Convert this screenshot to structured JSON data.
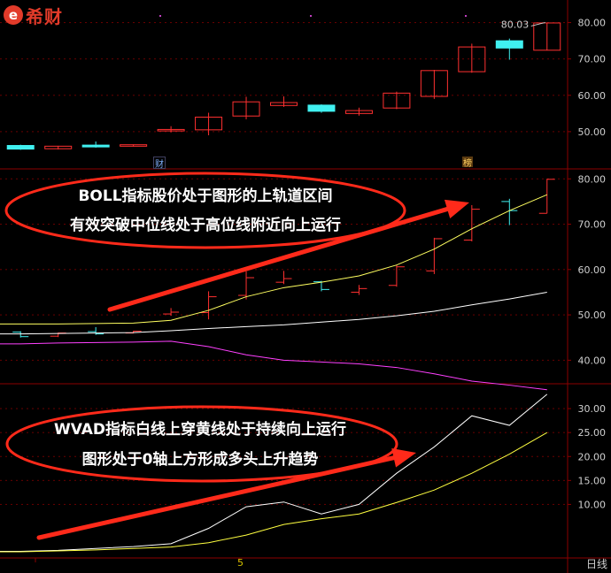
{
  "app": {
    "logo_text": "希财",
    "logo_mark": "e",
    "period_label": "日线",
    "date_tick": "5",
    "markers": [
      "财",
      "榜"
    ]
  },
  "colors": {
    "background": "#000000",
    "frame": "#8b0000",
    "axis_text": "#d0d0d0",
    "up_candle": "#ff3030",
    "down_candle": "#40f0f0",
    "boll_upper": "#ffff60",
    "boll_mid": "#ffffff",
    "boll_lower": "#ff40ff",
    "wvad_white": "#ffffff",
    "wvad_yellow": "#ffff40",
    "annotation": "#ff2a1a"
  },
  "annotations": {
    "boll_line1": "BOLL指标股价处于图形的上轨道区间",
    "boll_line2": "有效突破中位线处于高位线附近向上运行",
    "wvad_line1": "WVAD指标白线上穿黄线处于持续向上运行",
    "wvad_line2": "图形处于0轴上方形成多头上升趋势"
  },
  "chart_data": [
    {
      "type": "candlestick",
      "panel": "price",
      "title": "",
      "high_label": "80.03",
      "ylim": [
        40,
        85
      ],
      "yticks": [
        "50.00",
        "60.00",
        "70.00",
        "80.00"
      ],
      "candles": [
        {
          "o": 46.2,
          "c": 45.2,
          "h": 46.4,
          "l": 45.0
        },
        {
          "o": 45.3,
          "c": 46.0,
          "h": 46.1,
          "l": 45.1
        },
        {
          "o": 46.3,
          "c": 45.8,
          "h": 47.3,
          "l": 45.6
        },
        {
          "o": 46.0,
          "c": 46.4,
          "h": 46.5,
          "l": 45.9
        },
        {
          "o": 50.2,
          "c": 50.6,
          "h": 51.5,
          "l": 49.8
        },
        {
          "o": 50.5,
          "c": 54.0,
          "h": 55.2,
          "l": 49.0
        },
        {
          "o": 54.3,
          "c": 58.2,
          "h": 59.6,
          "l": 53.4
        },
        {
          "o": 57.2,
          "c": 58.0,
          "h": 59.7,
          "l": 56.8
        },
        {
          "o": 57.3,
          "c": 55.6,
          "h": 57.5,
          "l": 55.2
        },
        {
          "o": 55.0,
          "c": 55.8,
          "h": 56.6,
          "l": 54.4
        },
        {
          "o": 56.5,
          "c": 60.6,
          "h": 61.0,
          "l": 56.2
        },
        {
          "o": 59.7,
          "c": 66.8,
          "h": 67.0,
          "l": 59.0
        },
        {
          "o": 66.5,
          "c": 73.3,
          "h": 74.2,
          "l": 66.2
        },
        {
          "o": 75.0,
          "c": 73.0,
          "h": 75.6,
          "l": 69.8
        },
        {
          "o": 72.4,
          "c": 79.9,
          "h": 80.03,
          "l": 72.4
        }
      ]
    },
    {
      "type": "line",
      "panel": "BOLL",
      "title": "",
      "ylim": [
        35,
        82
      ],
      "yticks": [
        "40.00",
        "50.00",
        "60.00",
        "70.00",
        "80.00"
      ],
      "x": [
        0,
        1,
        2,
        3,
        4,
        5,
        6,
        7,
        8,
        9,
        10,
        11,
        12,
        13,
        14
      ],
      "series": [
        {
          "values": [
            48.0,
            48.0,
            48.1,
            48.2,
            48.8,
            51.0,
            54.0,
            56.0,
            57.2,
            58.6,
            61.0,
            64.5,
            69.0,
            73.0,
            76.5
          ]
        },
        {
          "values": [
            45.8,
            45.9,
            46.0,
            46.1,
            46.5,
            47.0,
            47.4,
            47.8,
            48.4,
            49.0,
            49.8,
            50.8,
            52.2,
            53.5,
            55.0
          ]
        },
        {
          "values": [
            43.6,
            43.8,
            43.9,
            44.0,
            44.2,
            43.0,
            41.2,
            40.0,
            39.6,
            39.2,
            38.4,
            37.0,
            35.4,
            34.5,
            33.5
          ]
        }
      ],
      "candles_overlay": [
        {
          "o": 46.2,
          "c": 45.2,
          "h": 46.4,
          "l": 45.0
        },
        {
          "o": 45.3,
          "c": 46.0,
          "h": 46.1,
          "l": 45.1
        },
        {
          "o": 46.3,
          "c": 45.8,
          "h": 47.3,
          "l": 45.6
        },
        {
          "o": 46.0,
          "c": 46.4,
          "h": 46.5,
          "l": 45.9
        },
        {
          "o": 50.2,
          "c": 50.6,
          "h": 51.5,
          "l": 49.8
        },
        {
          "o": 50.5,
          "c": 54.0,
          "h": 55.2,
          "l": 49.0
        },
        {
          "o": 54.3,
          "c": 58.2,
          "h": 59.6,
          "l": 53.4
        },
        {
          "o": 57.2,
          "c": 58.0,
          "h": 59.7,
          "l": 56.8
        },
        {
          "o": 57.3,
          "c": 55.6,
          "h": 57.5,
          "l": 55.2
        },
        {
          "o": 55.0,
          "c": 55.8,
          "h": 56.6,
          "l": 54.4
        },
        {
          "o": 56.5,
          "c": 60.6,
          "h": 61.0,
          "l": 56.2
        },
        {
          "o": 59.7,
          "c": 66.8,
          "h": 67.0,
          "l": 59.0
        },
        {
          "o": 66.5,
          "c": 73.3,
          "h": 74.2,
          "l": 66.2
        },
        {
          "o": 75.0,
          "c": 73.0,
          "h": 75.6,
          "l": 69.8
        },
        {
          "o": 72.4,
          "c": 79.9,
          "h": 80.03,
          "l": 72.4
        }
      ]
    },
    {
      "type": "line",
      "panel": "WVAD",
      "title": "",
      "ylim": [
        -1,
        35
      ],
      "yticks": [
        "10.00",
        "15.00",
        "20.00",
        "25.00",
        "30.00"
      ],
      "x": [
        0,
        1,
        2,
        3,
        4,
        5,
        6,
        7,
        8,
        9,
        10,
        11,
        12,
        13,
        14
      ],
      "series": [
        {
          "values": [
            0.2,
            0.4,
            0.8,
            1.2,
            1.8,
            5.0,
            9.5,
            10.5,
            8.0,
            10.0,
            16.5,
            22.0,
            28.5,
            26.5,
            33.0
          ]
        },
        {
          "values": [
            0.1,
            0.3,
            0.5,
            0.8,
            1.1,
            2.0,
            3.6,
            5.8,
            7.0,
            8.0,
            10.4,
            13.0,
            16.5,
            20.5,
            25.0
          ]
        }
      ]
    }
  ]
}
